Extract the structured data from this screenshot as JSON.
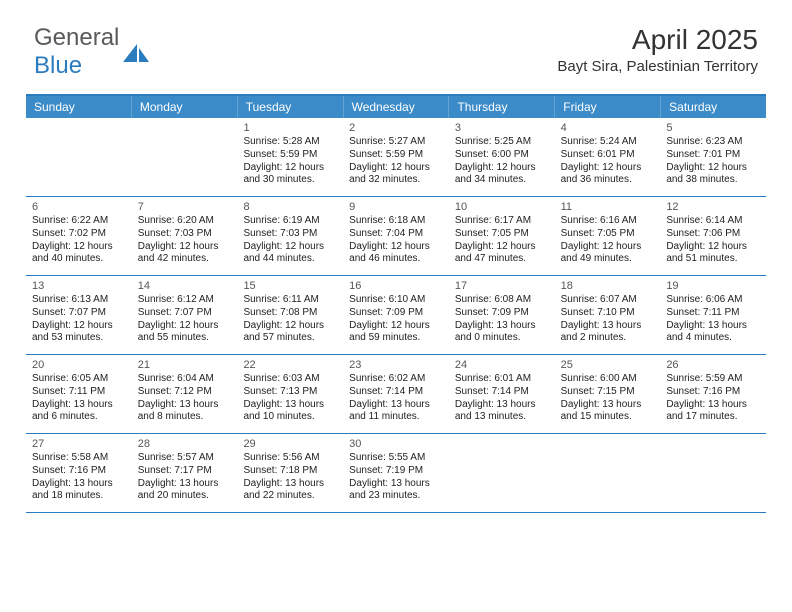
{
  "logo": {
    "text_a": "General",
    "text_b": "Blue"
  },
  "header": {
    "month_title": "April 2025",
    "location": "Bayt Sira, Palestinian Territory"
  },
  "colors": {
    "header_bar": "#3b8bc9",
    "border": "#2b7bbf",
    "logo_gray": "#5a5a5a",
    "logo_blue": "#2b7bbf"
  },
  "day_headers": [
    "Sunday",
    "Monday",
    "Tuesday",
    "Wednesday",
    "Thursday",
    "Friday",
    "Saturday"
  ],
  "weeks": [
    [
      null,
      null,
      {
        "n": "1",
        "sunrise": "5:28 AM",
        "sunset": "5:59 PM",
        "daylight": "12 hours and 30 minutes."
      },
      {
        "n": "2",
        "sunrise": "5:27 AM",
        "sunset": "5:59 PM",
        "daylight": "12 hours and 32 minutes."
      },
      {
        "n": "3",
        "sunrise": "5:25 AM",
        "sunset": "6:00 PM",
        "daylight": "12 hours and 34 minutes."
      },
      {
        "n": "4",
        "sunrise": "5:24 AM",
        "sunset": "6:01 PM",
        "daylight": "12 hours and 36 minutes."
      },
      {
        "n": "5",
        "sunrise": "6:23 AM",
        "sunset": "7:01 PM",
        "daylight": "12 hours and 38 minutes."
      }
    ],
    [
      {
        "n": "6",
        "sunrise": "6:22 AM",
        "sunset": "7:02 PM",
        "daylight": "12 hours and 40 minutes."
      },
      {
        "n": "7",
        "sunrise": "6:20 AM",
        "sunset": "7:03 PM",
        "daylight": "12 hours and 42 minutes."
      },
      {
        "n": "8",
        "sunrise": "6:19 AM",
        "sunset": "7:03 PM",
        "daylight": "12 hours and 44 minutes."
      },
      {
        "n": "9",
        "sunrise": "6:18 AM",
        "sunset": "7:04 PM",
        "daylight": "12 hours and 46 minutes."
      },
      {
        "n": "10",
        "sunrise": "6:17 AM",
        "sunset": "7:05 PM",
        "daylight": "12 hours and 47 minutes."
      },
      {
        "n": "11",
        "sunrise": "6:16 AM",
        "sunset": "7:05 PM",
        "daylight": "12 hours and 49 minutes."
      },
      {
        "n": "12",
        "sunrise": "6:14 AM",
        "sunset": "7:06 PM",
        "daylight": "12 hours and 51 minutes."
      }
    ],
    [
      {
        "n": "13",
        "sunrise": "6:13 AM",
        "sunset": "7:07 PM",
        "daylight": "12 hours and 53 minutes."
      },
      {
        "n": "14",
        "sunrise": "6:12 AM",
        "sunset": "7:07 PM",
        "daylight": "12 hours and 55 minutes."
      },
      {
        "n": "15",
        "sunrise": "6:11 AM",
        "sunset": "7:08 PM",
        "daylight": "12 hours and 57 minutes."
      },
      {
        "n": "16",
        "sunrise": "6:10 AM",
        "sunset": "7:09 PM",
        "daylight": "12 hours and 59 minutes."
      },
      {
        "n": "17",
        "sunrise": "6:08 AM",
        "sunset": "7:09 PM",
        "daylight": "13 hours and 0 minutes."
      },
      {
        "n": "18",
        "sunrise": "6:07 AM",
        "sunset": "7:10 PM",
        "daylight": "13 hours and 2 minutes."
      },
      {
        "n": "19",
        "sunrise": "6:06 AM",
        "sunset": "7:11 PM",
        "daylight": "13 hours and 4 minutes."
      }
    ],
    [
      {
        "n": "20",
        "sunrise": "6:05 AM",
        "sunset": "7:11 PM",
        "daylight": "13 hours and 6 minutes."
      },
      {
        "n": "21",
        "sunrise": "6:04 AM",
        "sunset": "7:12 PM",
        "daylight": "13 hours and 8 minutes."
      },
      {
        "n": "22",
        "sunrise": "6:03 AM",
        "sunset": "7:13 PM",
        "daylight": "13 hours and 10 minutes."
      },
      {
        "n": "23",
        "sunrise": "6:02 AM",
        "sunset": "7:14 PM",
        "daylight": "13 hours and 11 minutes."
      },
      {
        "n": "24",
        "sunrise": "6:01 AM",
        "sunset": "7:14 PM",
        "daylight": "13 hours and 13 minutes."
      },
      {
        "n": "25",
        "sunrise": "6:00 AM",
        "sunset": "7:15 PM",
        "daylight": "13 hours and 15 minutes."
      },
      {
        "n": "26",
        "sunrise": "5:59 AM",
        "sunset": "7:16 PM",
        "daylight": "13 hours and 17 minutes."
      }
    ],
    [
      {
        "n": "27",
        "sunrise": "5:58 AM",
        "sunset": "7:16 PM",
        "daylight": "13 hours and 18 minutes."
      },
      {
        "n": "28",
        "sunrise": "5:57 AM",
        "sunset": "7:17 PM",
        "daylight": "13 hours and 20 minutes."
      },
      {
        "n": "29",
        "sunrise": "5:56 AM",
        "sunset": "7:18 PM",
        "daylight": "13 hours and 22 minutes."
      },
      {
        "n": "30",
        "sunrise": "5:55 AM",
        "sunset": "7:19 PM",
        "daylight": "13 hours and 23 minutes."
      },
      null,
      null,
      null
    ]
  ],
  "labels": {
    "sunrise": "Sunrise: ",
    "sunset": "Sunset: ",
    "daylight": "Daylight: "
  }
}
